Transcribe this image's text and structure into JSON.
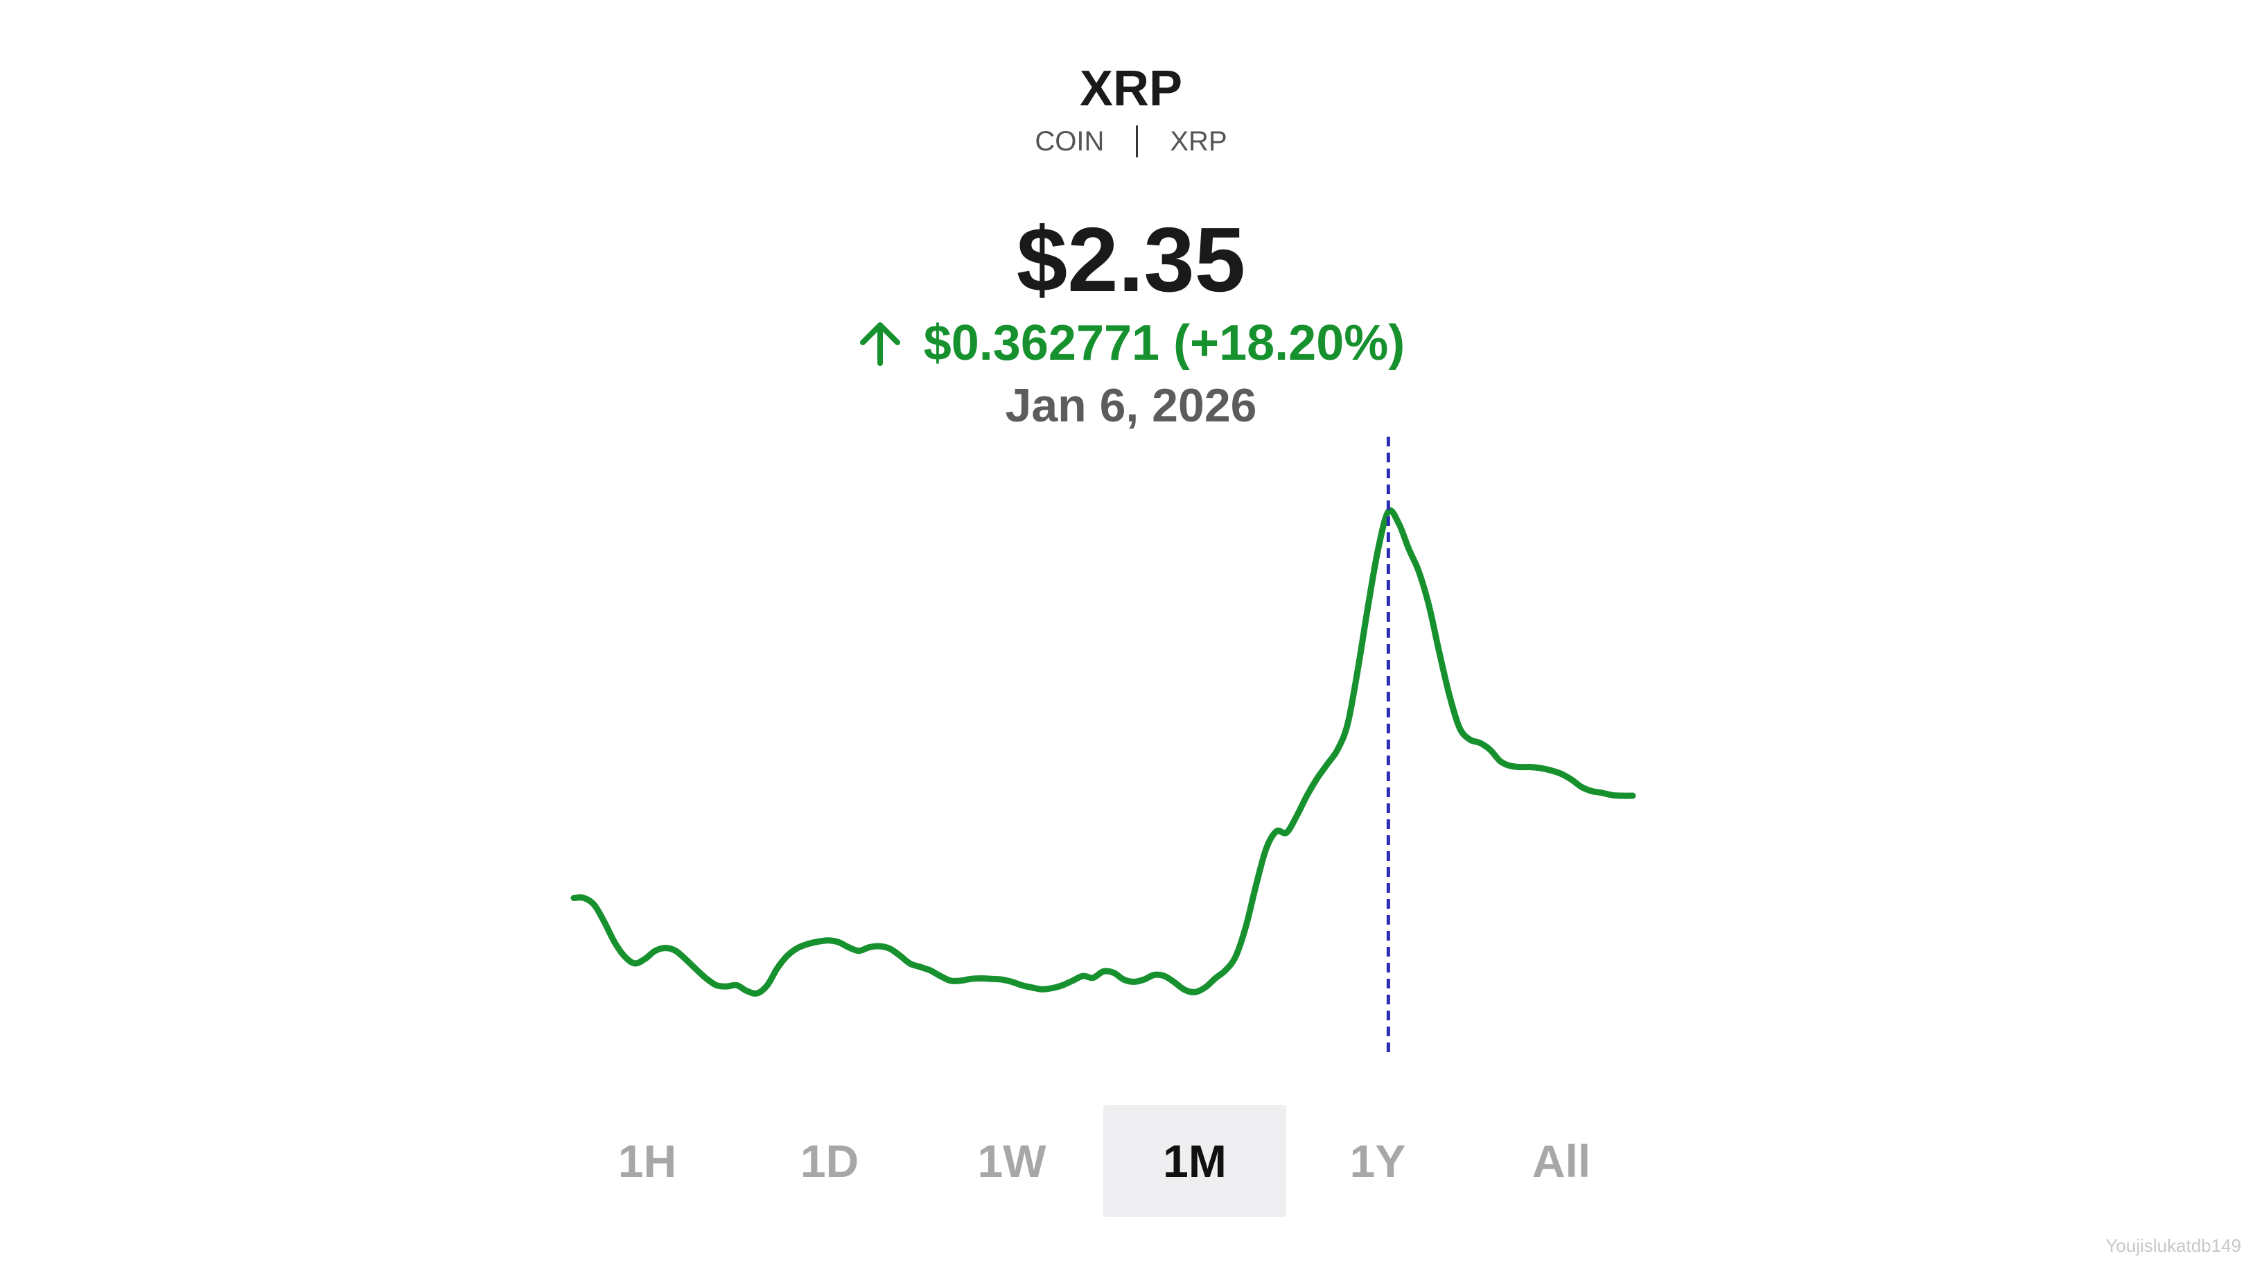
{
  "asset": {
    "name": "XRP",
    "type": "COIN",
    "symbol": "XRP"
  },
  "quote": {
    "price": "$2.35",
    "change": "$0.362771 (+18.20%)",
    "direction_icon": "arrow-up-icon",
    "date": "Jan 6, 2026"
  },
  "colors": {
    "up": "#16912e",
    "cursor": "#2b2bb8",
    "active_range_bg": "#efeff1"
  },
  "ranges": [
    "1H",
    "1D",
    "1W",
    "1M",
    "1Y",
    "All"
  ],
  "selected_range": "1M",
  "watermark": "Youjislukatdb149",
  "chart_data": {
    "type": "line",
    "series": [
      {
        "values": [
          1.962,
          1.962,
          1.95,
          1.92,
          1.885,
          1.86,
          1.848,
          1.856,
          1.87,
          1.875,
          1.87,
          1.855,
          1.838,
          1.822,
          1.81,
          1.808,
          1.81,
          1.8,
          1.796,
          1.81,
          1.84,
          1.862,
          1.875,
          1.882,
          1.886,
          1.888,
          1.885,
          1.876,
          1.87,
          1.876,
          1.878,
          1.874,
          1.862,
          1.848,
          1.842,
          1.836,
          1.826,
          1.818,
          1.818,
          1.821,
          1.822,
          1.821,
          1.82,
          1.816,
          1.81,
          1.806,
          1.803,
          1.805,
          1.81,
          1.818,
          1.826,
          1.823,
          1.834,
          1.832,
          1.82,
          1.816,
          1.82,
          1.828,
          1.826,
          1.815,
          1.802,
          1.798,
          1.806,
          1.822,
          1.836,
          1.86,
          1.912,
          1.984,
          2.048,
          2.078,
          2.076,
          2.105,
          2.14,
          2.17,
          2.195,
          2.22,
          2.265,
          2.36,
          2.47,
          2.57,
          2.635,
          2.615,
          2.57,
          2.53,
          2.47,
          2.39,
          2.315,
          2.258,
          2.238,
          2.232,
          2.22,
          2.2,
          2.192,
          2.19,
          2.19,
          2.188,
          2.184,
          2.178,
          2.168,
          2.155,
          2.148,
          2.145,
          2.141,
          2.14,
          2.14
        ]
      }
    ],
    "highlight_index": 80
  }
}
